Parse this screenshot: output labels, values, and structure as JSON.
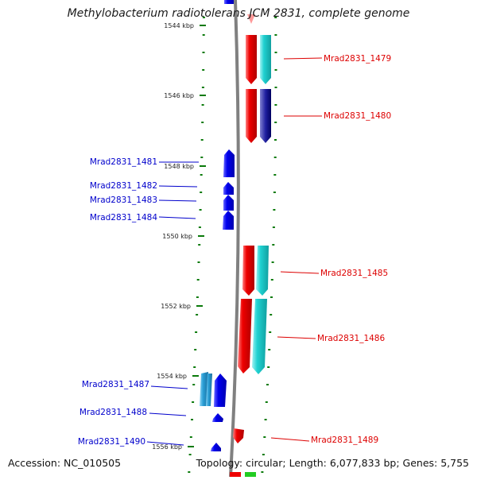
{
  "title": "Methylobacterium radiotolerans JCM 2831, complete genome",
  "footer": {
    "accession": "Accession: NC_010505",
    "topology": "Topology: circular; Length: 6,077,833 bp; Genes: 5,755"
  },
  "colors": {
    "forward_gene": "#0000ee",
    "forward_cds": "#2a9fd6",
    "reverse_gene": "#ee0000",
    "reverse_cds": "#1fd1d1",
    "reverse_cds_alt": "#000080",
    "tick": "#0a7a0a",
    "backbone": "#808080"
  },
  "kbp_labels": [
    "1544 kbp",
    "1546 kbp",
    "1548 kbp",
    "1550 kbp",
    "1552 kbp",
    "1554 kbp",
    "1556 kbp"
  ],
  "genes_left": [
    {
      "id": "g1481",
      "label": "Mrad2831_1481",
      "kbp": 1547.9
    },
    {
      "id": "g1482",
      "label": "Mrad2831_1482",
      "kbp": 1548.6
    },
    {
      "id": "g1483",
      "label": "Mrad2831_1483",
      "kbp": 1549.0
    },
    {
      "id": "g1484",
      "label": "Mrad2831_1484",
      "kbp": 1549.5
    },
    {
      "id": "g1487",
      "label": "Mrad2831_1487",
      "kbp": 1554.3
    },
    {
      "id": "g1488",
      "label": "Mrad2831_1488",
      "kbp": 1555.1
    },
    {
      "id": "g1490",
      "label": "Mrad2831_1490",
      "kbp": 1555.9
    }
  ],
  "genes_right": [
    {
      "id": "g1479",
      "label": "Mrad2831_1479",
      "kbp": 1544.8
    },
    {
      "id": "g1480",
      "label": "Mrad2831_1480",
      "kbp": 1546.5
    },
    {
      "id": "g1485",
      "label": "Mrad2831_1485",
      "kbp": 1551.2
    },
    {
      "id": "g1486",
      "label": "Mrad2831_1486",
      "kbp": 1552.9
    },
    {
      "id": "g1489",
      "label": "Mrad2831_1489",
      "kbp": 1555.8
    }
  ]
}
